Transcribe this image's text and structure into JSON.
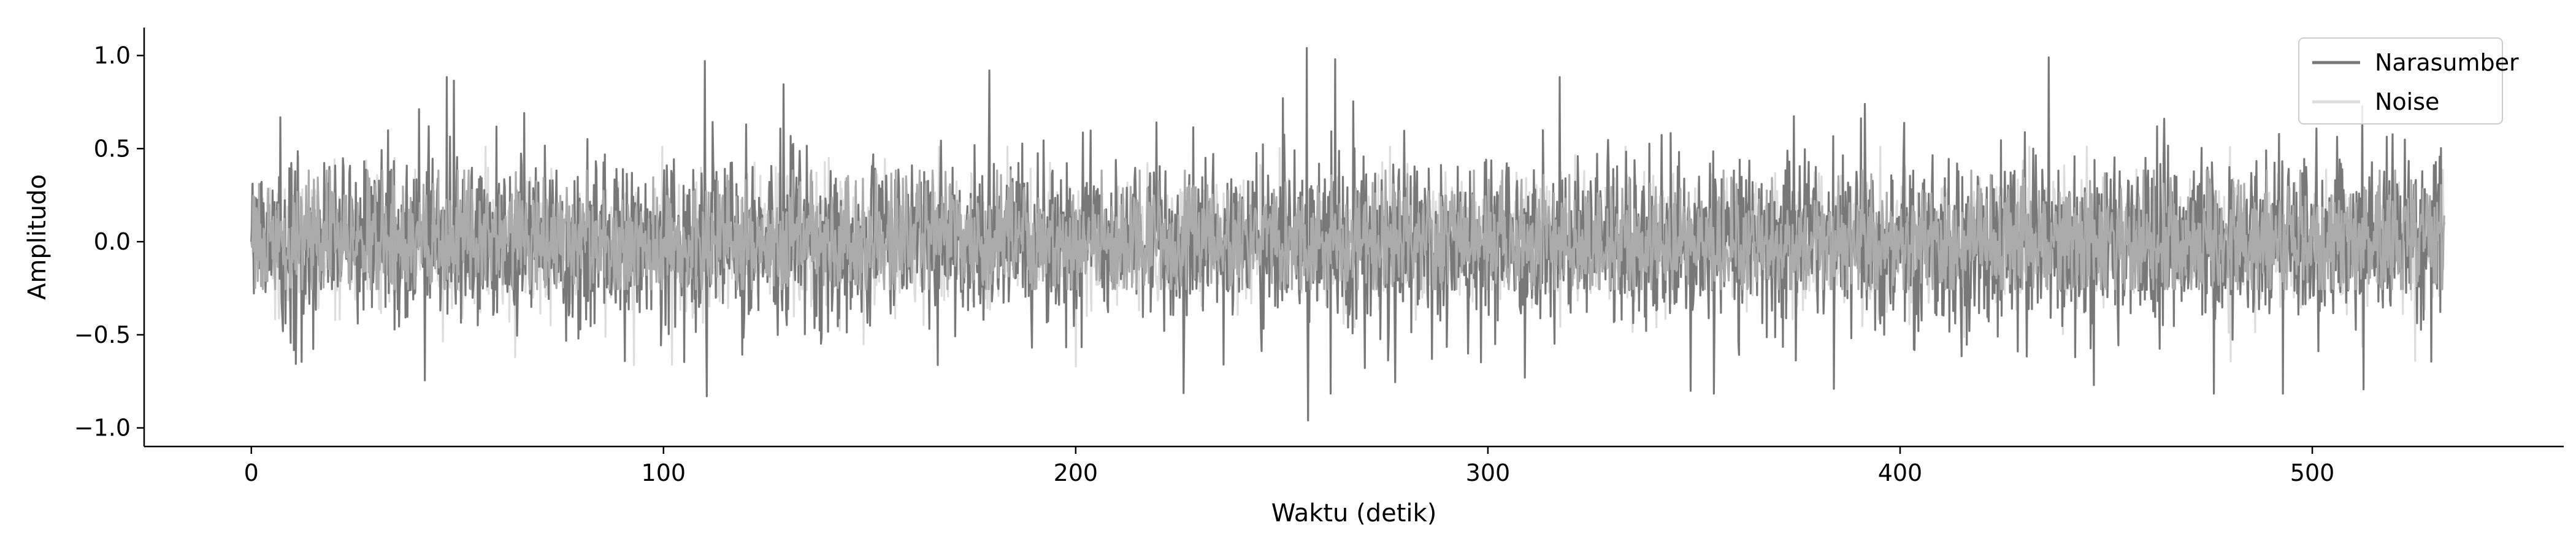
{
  "chart_data": {
    "type": "line",
    "title": "",
    "xlabel": "Waktu (detik)",
    "ylabel": "Amplitudo",
    "xlim": [
      -26,
      561
    ],
    "ylim": [
      -1.1,
      1.15
    ],
    "x_ticks": [
      0,
      100,
      200,
      300,
      400,
      500
    ],
    "x_tick_labels": [
      "0",
      "100",
      "200",
      "300",
      "400",
      "500"
    ],
    "y_ticks": [
      1.0,
      0.5,
      0.0,
      -0.5,
      -1.0
    ],
    "y_tick_labels": [
      "1.0",
      "0.5",
      "0.0",
      "−0.5",
      "−1.0"
    ],
    "grid": false,
    "legend_position": "top-right",
    "duration": 532,
    "series": [
      {
        "name": "Narasumber",
        "color": "#787878",
        "amplitude": 0.42,
        "approx_max": 1.04,
        "approx_min": -0.96,
        "peaks": [
          [
            110,
            0.97
          ],
          [
            110.5,
            -0.83
          ],
          [
            179,
            0.92
          ],
          [
            256,
            1.04
          ],
          [
            256.3,
            -0.96
          ],
          [
            263,
            0.98
          ],
          [
            436,
            0.99
          ],
          [
            384,
            -0.79
          ],
          [
            447,
            -0.77
          ]
        ]
      },
      {
        "name": "Noise",
        "color": "#dddddd",
        "amplitude": 0.3,
        "approx_max": 0.6,
        "approx_min": -0.78,
        "peaks": [
          [
            102,
            -0.66
          ],
          [
            64,
            -0.62
          ],
          [
            200,
            -0.67
          ],
          [
            525,
            -0.64
          ]
        ]
      },
      {
        "name": "",
        "color": "#ababab",
        "amplitude": 0.28,
        "approx_max": 0.45,
        "approx_min": -0.3
      }
    ]
  }
}
